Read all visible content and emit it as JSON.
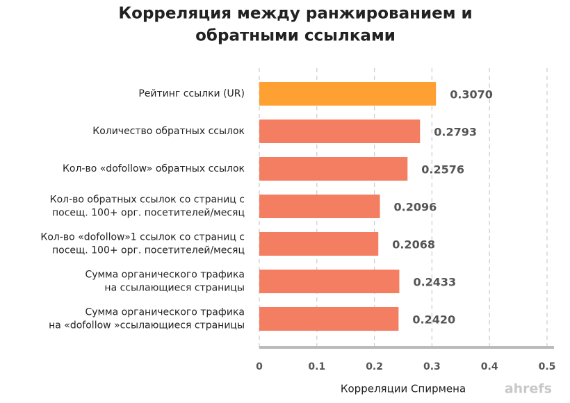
{
  "chart_data": {
    "type": "bar",
    "orientation": "horizontal",
    "title": [
      "Корреляция между ранжированием и",
      "обратными ссылками"
    ],
    "categories": [
      [
        "Рейтинг ссылки (UR)"
      ],
      [
        "Количество обратных ссылок"
      ],
      [
        "Кол-во «dofollow» обратных ссылок"
      ],
      [
        "Кол-во обратных ссылок со страниц с",
        "посещ. 100+ орг. посетителей/месяц"
      ],
      [
        "Кол-во «dofollow»1 ссылок со страниц с",
        "посещ. 100+ орг. посетителей/месяц"
      ],
      [
        "Сумма органического трафика",
        "на ссылающиеся страницы"
      ],
      [
        "Сумма органического трафика",
        "на «dofollow »ссылающиеся страницы"
      ]
    ],
    "values": [
      0.307,
      0.2793,
      0.2576,
      0.2096,
      0.2068,
      0.2433,
      0.242
    ],
    "value_labels": [
      "0.3070",
      "0.2793",
      "0.2576",
      "0.2096",
      "0.2068",
      "0.2433",
      "0.2420"
    ],
    "colors": [
      "#ffa033",
      "#f47e62",
      "#f47e62",
      "#f47e62",
      "#f47e62",
      "#f47e62",
      "#f47e62"
    ],
    "xlim": [
      0,
      0.5
    ],
    "xticks": [
      0,
      0.1,
      0.2,
      0.3,
      0.4,
      0.5
    ],
    "grid": true,
    "xlabel": "Корреляции Спирмена",
    "watermark": "ahrefs"
  }
}
